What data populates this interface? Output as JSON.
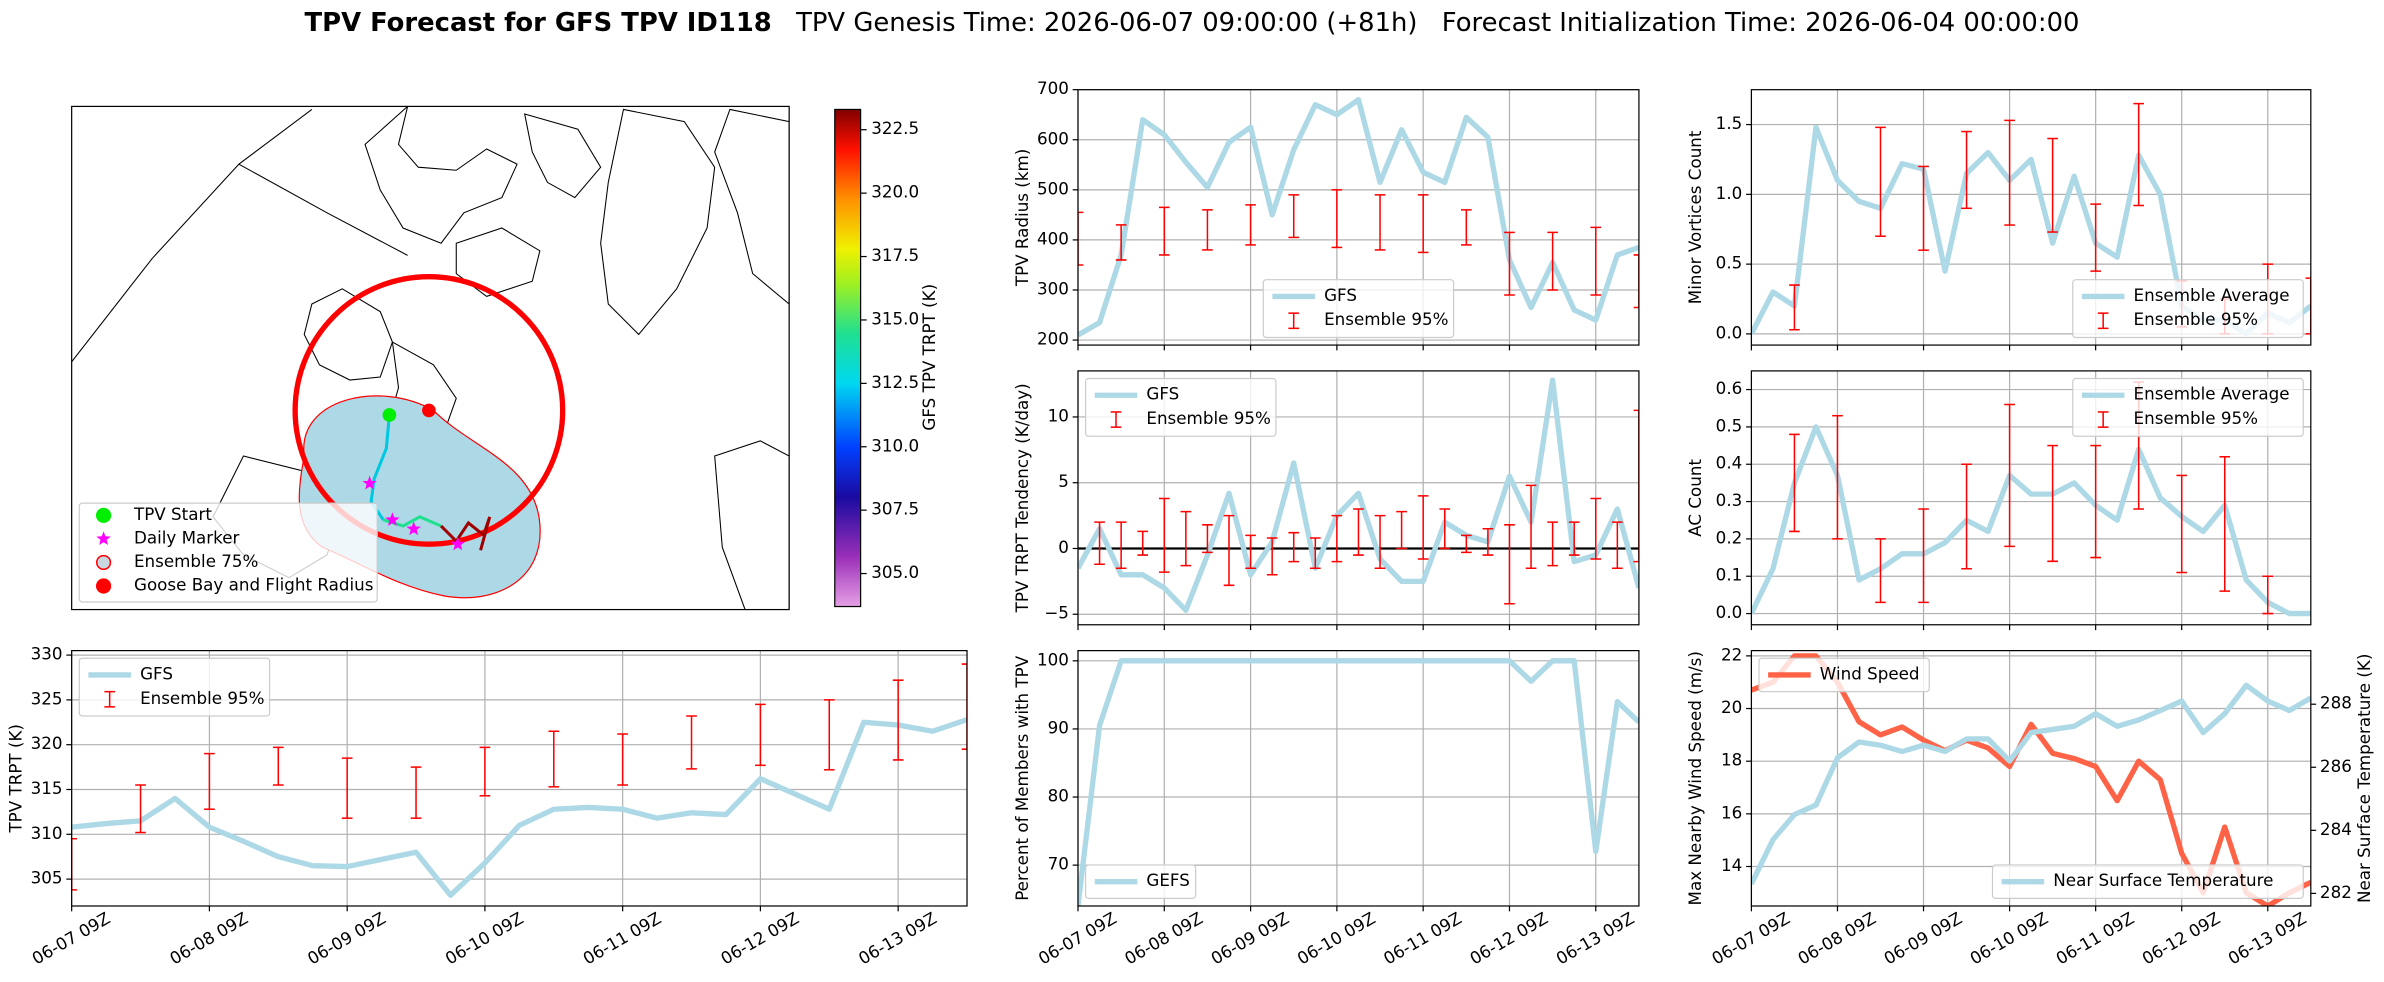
{
  "chart_data": [
    {
      "type": "map",
      "legend": [
        {
          "name": "TPV Start",
          "marker": "circle",
          "color": "#00ee00",
          "edgecolor": "#00ee00"
        },
        {
          "name": "Daily Marker",
          "marker": "star",
          "color": "#ff00ff",
          "edgecolor": "#ff00ff"
        },
        {
          "name": "Ensemble 75%",
          "marker": "circle",
          "color": "#c9d8e0",
          "edgecolor": "#ff0000"
        },
        {
          "name": "Goose Bay and Flight Radius",
          "marker": "circle",
          "color": "#ff0000",
          "edgecolor": "#ff0000"
        }
      ],
      "colorbar": {
        "label": "GFS TPV TRPT (K)",
        "ylim": [
          303.7,
          323.3
        ],
        "yticks": [
          {
            "value": 305,
            "label": "305.0"
          },
          307.5,
          {
            "value": 310,
            "label": "310.0"
          },
          312.5,
          {
            "value": 315,
            "label": "315.0"
          },
          317.5,
          {
            "value": 320,
            "label": "320.0"
          },
          322.5
        ]
      }
    },
    {
      "type": "line",
      "ylabel": "TPV Radius (km)",
      "grid": true,
      "legend": "lower center",
      "x": [
        "06-07 09Z",
        "06-07 15Z",
        "06-07 21Z",
        "06-08 03Z",
        "06-08 09Z",
        "06-08 15Z",
        "06-08 21Z",
        "06-09 03Z",
        "06-09 09Z",
        "06-09 15Z",
        "06-09 21Z",
        "06-10 03Z",
        "06-10 09Z",
        "06-10 15Z",
        "06-10 21Z",
        "06-11 03Z",
        "06-11 09Z",
        "06-11 15Z",
        "06-11 21Z",
        "06-12 03Z",
        "06-12 09Z",
        "06-12 15Z",
        "06-12 21Z",
        "06-13 03Z",
        "06-13 09Z",
        "06-13 15Z",
        "06-13 21Z"
      ],
      "ylim": [
        190,
        700
      ],
      "yticks": [
        200,
        300,
        400,
        500,
        600,
        700
      ],
      "series": [
        {
          "name": "GFS",
          "color": "#add8e6",
          "values": [
            210,
            235,
            370,
            640,
            610,
            555,
            505,
            595,
            625,
            450,
            580,
            670,
            650,
            680,
            515,
            620,
            535,
            515,
            645,
            605,
            360,
            265,
            355,
            260,
            240,
            370,
            385
          ]
        },
        {
          "name": "Ensemble 95%",
          "color": "#ff0000",
          "lower": [
            350,
            null,
            360,
            null,
            370,
            null,
            380,
            null,
            390,
            null,
            405,
            null,
            385,
            null,
            380,
            null,
            375,
            null,
            390,
            null,
            290,
            null,
            300,
            null,
            290,
            null,
            265
          ],
          "upper": [
            455,
            null,
            430,
            null,
            465,
            null,
            460,
            null,
            470,
            null,
            490,
            null,
            500,
            null,
            490,
            null,
            490,
            null,
            460,
            null,
            415,
            null,
            415,
            null,
            425,
            null,
            370
          ]
        }
      ]
    },
    {
      "type": "line",
      "ylabel": "Minor Vortices Count",
      "grid": true,
      "legend": "lower right",
      "x": [
        "06-07 09Z",
        "06-07 15Z",
        "06-07 21Z",
        "06-08 03Z",
        "06-08 09Z",
        "06-08 15Z",
        "06-08 21Z",
        "06-09 03Z",
        "06-09 09Z",
        "06-09 15Z",
        "06-09 21Z",
        "06-10 03Z",
        "06-10 09Z",
        "06-10 15Z",
        "06-10 21Z",
        "06-11 03Z",
        "06-11 09Z",
        "06-11 15Z",
        "06-11 21Z",
        "06-12 03Z",
        "06-12 09Z",
        "06-12 15Z",
        "06-12 21Z",
        "06-13 03Z",
        "06-13 09Z",
        "06-13 15Z",
        "06-13 21Z"
      ],
      "ylim": [
        -0.08,
        1.75
      ],
      "yticks": [
        {
          "value": 0,
          "label": "0.0"
        },
        0.5,
        {
          "value": 1,
          "label": "1.0"
        },
        1.5
      ],
      "series": [
        {
          "name": "Ensemble Average",
          "color": "#add8e6",
          "values": [
            0,
            0.3,
            0.2,
            1.48,
            1.1,
            0.95,
            0.9,
            1.22,
            1.18,
            0.45,
            1.15,
            1.3,
            1.1,
            1.25,
            0.65,
            1.13,
            0.65,
            0.55,
            1.28,
            1,
            0.2,
            0.1,
            0.1,
            0,
            0.15,
            0.08,
            0.2
          ]
        },
        {
          "name": "Ensemble 95%",
          "color": "#ff0000",
          "lower": [
            null,
            null,
            0.03,
            null,
            null,
            null,
            0.7,
            null,
            0.6,
            null,
            0.9,
            null,
            0.78,
            null,
            0.73,
            null,
            0.45,
            null,
            0.92,
            null,
            0.05,
            null,
            0,
            null,
            0,
            null,
            0
          ],
          "upper": [
            null,
            null,
            0.35,
            null,
            null,
            null,
            1.48,
            null,
            1.2,
            null,
            1.45,
            null,
            1.53,
            null,
            1.4,
            null,
            0.93,
            null,
            1.65,
            null,
            0.38,
            null,
            0.25,
            null,
            0.5,
            null,
            0.4
          ]
        }
      ]
    },
    {
      "type": "line",
      "ylabel": "TPV TRPT Tendency (K/day)",
      "grid": true,
      "legend": "upper left",
      "hline": 0,
      "x": [
        "06-07 09Z",
        "06-07 15Z",
        "06-07 21Z",
        "06-08 03Z",
        "06-08 09Z",
        "06-08 15Z",
        "06-08 21Z",
        "06-09 03Z",
        "06-09 09Z",
        "06-09 15Z",
        "06-09 21Z",
        "06-10 03Z",
        "06-10 09Z",
        "06-10 15Z",
        "06-10 21Z",
        "06-11 03Z",
        "06-11 09Z",
        "06-11 15Z",
        "06-11 21Z",
        "06-12 03Z",
        "06-12 09Z",
        "06-12 15Z",
        "06-12 21Z",
        "06-13 03Z",
        "06-13 09Z",
        "06-13 15Z",
        "06-13 21Z"
      ],
      "ylim": [
        -5.8,
        13.5
      ],
      "yticks": [
        {
          "value": -5,
          "label": "−5"
        },
        0,
        5,
        10
      ],
      "series": [
        {
          "name": "GFS",
          "color": "#add8e6",
          "values": [
            -1.5,
            1.5,
            -2,
            -2,
            -3,
            -4.7,
            -0.5,
            4.2,
            -2,
            0.5,
            6.5,
            -1.5,
            2.5,
            4.2,
            -0.8,
            -2.5,
            -2.5,
            2,
            1,
            0.5,
            5.5,
            2,
            12.8,
            -1,
            -0.5,
            3,
            -3
          ]
        },
        {
          "name": "Ensemble 95%",
          "color": "#ff0000",
          "lower": [
            null,
            -1.2,
            -1.5,
            -0.5,
            -1.8,
            -1.3,
            -0.3,
            -2.8,
            -1.5,
            -2,
            -1,
            -1.5,
            -1,
            -0.5,
            -1.5,
            0,
            -0.8,
            0,
            -0.3,
            -0.5,
            -4.2,
            -1.5,
            -1.3,
            -0.5,
            -0.8,
            -1.5,
            -1
          ],
          "upper": [
            null,
            2,
            2,
            1.3,
            3.8,
            2.8,
            1.8,
            2.5,
            1,
            0.8,
            1.2,
            0.8,
            2.5,
            3,
            2.5,
            2.8,
            4,
            3,
            1,
            1.5,
            1.8,
            4.8,
            2,
            2,
            3.8,
            2,
            10.5
          ]
        }
      ]
    },
    {
      "type": "line",
      "ylabel": "AC Count",
      "grid": true,
      "legend": "upper right",
      "x": [
        "06-07 09Z",
        "06-07 15Z",
        "06-07 21Z",
        "06-08 03Z",
        "06-08 09Z",
        "06-08 15Z",
        "06-08 21Z",
        "06-09 03Z",
        "06-09 09Z",
        "06-09 15Z",
        "06-09 21Z",
        "06-10 03Z",
        "06-10 09Z",
        "06-10 15Z",
        "06-10 21Z",
        "06-11 03Z",
        "06-11 09Z",
        "06-11 15Z",
        "06-11 21Z",
        "06-12 03Z",
        "06-12 09Z",
        "06-12 15Z",
        "06-12 21Z",
        "06-13 03Z",
        "06-13 09Z",
        "06-13 15Z",
        "06-13 21Z"
      ],
      "ylim": [
        -0.03,
        0.65
      ],
      "yticks": [
        {
          "value": 0,
          "label": "0.0"
        },
        0.1,
        0.2,
        0.3,
        0.4,
        0.5,
        0.6
      ],
      "series": [
        {
          "name": "Ensemble Average",
          "color": "#add8e6",
          "values": [
            0,
            0.12,
            0.35,
            0.5,
            0.37,
            0.09,
            0.12,
            0.16,
            0.16,
            0.19,
            0.25,
            0.22,
            0.37,
            0.32,
            0.32,
            0.35,
            0.29,
            0.25,
            0.44,
            0.31,
            0.26,
            0.22,
            0.29,
            0.09,
            0.03,
            0,
            0
          ]
        },
        {
          "name": "Ensemble 95%",
          "color": "#ff0000",
          "lower": [
            null,
            null,
            0.22,
            null,
            0.2,
            null,
            0.03,
            null,
            0.03,
            null,
            0.12,
            null,
            0.18,
            null,
            0.14,
            null,
            0.15,
            null,
            0.28,
            null,
            0.11,
            null,
            0.06,
            null,
            0,
            null,
            null
          ],
          "upper": [
            null,
            null,
            0.48,
            null,
            0.53,
            null,
            0.2,
            null,
            0.28,
            null,
            0.4,
            null,
            0.56,
            null,
            0.45,
            null,
            0.45,
            null,
            0.62,
            null,
            0.37,
            null,
            0.42,
            null,
            0.1,
            null,
            null
          ]
        }
      ]
    },
    {
      "type": "line",
      "ylabel": "TPV TRPT (K)",
      "grid": true,
      "legend": "upper left",
      "x": [
        "06-07 09Z",
        "06-07 15Z",
        "06-07 21Z",
        "06-08 03Z",
        "06-08 09Z",
        "06-08 15Z",
        "06-08 21Z",
        "06-09 03Z",
        "06-09 09Z",
        "06-09 15Z",
        "06-09 21Z",
        "06-10 03Z",
        "06-10 09Z",
        "06-10 15Z",
        "06-10 21Z",
        "06-11 03Z",
        "06-11 09Z",
        "06-11 15Z",
        "06-11 21Z",
        "06-12 03Z",
        "06-12 09Z",
        "06-12 15Z",
        "06-12 21Z",
        "06-13 03Z",
        "06-13 09Z",
        "06-13 15Z",
        "06-13 21Z"
      ],
      "xticks": [
        "06-07 09Z",
        "06-08 09Z",
        "06-09 09Z",
        "06-10 09Z",
        "06-11 09Z",
        "06-12 09Z",
        "06-13 09Z"
      ],
      "ylim": [
        302,
        330.5
      ],
      "yticks": [
        305,
        310,
        315,
        320,
        325,
        330
      ],
      "series": [
        {
          "name": "GFS",
          "color": "#add8e6",
          "values": [
            310.8,
            311.2,
            311.5,
            314,
            310.8,
            309.2,
            307.5,
            306.5,
            306.4,
            307.2,
            308,
            303.2,
            306.8,
            311,
            312.8,
            313,
            312.8,
            311.8,
            312.4,
            312.2,
            316.2,
            314.5,
            312.8,
            322.5,
            322.2,
            321.5,
            322.8
          ]
        },
        {
          "name": "Ensemble 95%",
          "color": "#ff0000",
          "lower": [
            303.8,
            null,
            310.2,
            null,
            312.8,
            null,
            315.5,
            null,
            311.8,
            null,
            311.8,
            null,
            314.3,
            null,
            315.3,
            null,
            315.5,
            null,
            317.3,
            null,
            317.7,
            null,
            317.2,
            null,
            318.3,
            null,
            319.5
          ],
          "upper": [
            309.5,
            null,
            315.5,
            null,
            319,
            null,
            319.7,
            null,
            318.5,
            null,
            317.5,
            null,
            319.7,
            null,
            321.5,
            null,
            321.2,
            null,
            323.2,
            null,
            324.5,
            null,
            325,
            null,
            327.2,
            null,
            329
          ]
        }
      ]
    },
    {
      "type": "line",
      "ylabel": "Percent of Members with TPV",
      "grid": true,
      "legend": "lower left",
      "x": [
        "06-07 09Z",
        "06-07 15Z",
        "06-07 21Z",
        "06-08 03Z",
        "06-08 09Z",
        "06-08 15Z",
        "06-08 21Z",
        "06-09 03Z",
        "06-09 09Z",
        "06-09 15Z",
        "06-09 21Z",
        "06-10 03Z",
        "06-10 09Z",
        "06-10 15Z",
        "06-10 21Z",
        "06-11 03Z",
        "06-11 09Z",
        "06-11 15Z",
        "06-11 21Z",
        "06-12 03Z",
        "06-12 09Z",
        "06-12 15Z",
        "06-12 21Z",
        "06-13 03Z",
        "06-13 09Z",
        "06-13 15Z",
        "06-13 21Z"
      ],
      "xticks": [
        "06-07 09Z",
        "06-08 09Z",
        "06-09 09Z",
        "06-10 09Z",
        "06-11 09Z",
        "06-12 09Z",
        "06-13 09Z"
      ],
      "ylim": [
        64,
        101.5
      ],
      "yticks": [
        70,
        80,
        90,
        100
      ],
      "series": [
        {
          "name": "GEFS",
          "color": "#add8e6",
          "values": [
            64,
            90.5,
            100,
            100,
            100,
            100,
            100,
            100,
            100,
            100,
            100,
            100,
            100,
            100,
            100,
            100,
            100,
            100,
            100,
            100,
            100,
            97,
            100,
            100,
            72,
            94,
            91
          ]
        }
      ]
    },
    {
      "type": "line",
      "ylabel": "Max Nearby Wind Speed (m/s)",
      "ylabel_color": "#ff6347",
      "y2label": "Near Surface Temperature (K)",
      "y2label_color": "#4169e1",
      "grid": true,
      "legend": "upper left",
      "legend2": "lower right",
      "x": [
        "06-07 09Z",
        "06-07 15Z",
        "06-07 21Z",
        "06-08 03Z",
        "06-08 09Z",
        "06-08 15Z",
        "06-08 21Z",
        "06-09 03Z",
        "06-09 09Z",
        "06-09 15Z",
        "06-09 21Z",
        "06-10 03Z",
        "06-10 09Z",
        "06-10 15Z",
        "06-10 21Z",
        "06-11 03Z",
        "06-11 09Z",
        "06-11 15Z",
        "06-11 21Z",
        "06-12 03Z",
        "06-12 09Z",
        "06-12 15Z",
        "06-12 21Z",
        "06-13 03Z",
        "06-13 09Z",
        "06-13 15Z",
        "06-13 21Z"
      ],
      "xticks": [
        "06-07 09Z",
        "06-08 09Z",
        "06-09 09Z",
        "06-10 09Z",
        "06-11 09Z",
        "06-12 09Z",
        "06-13 09Z"
      ],
      "ylim": [
        12.5,
        22.2
      ],
      "yticks": [
        14,
        16,
        18,
        20,
        22
      ],
      "y2lim": [
        281.6,
        289.7
      ],
      "y2ticks": [
        282,
        284,
        286,
        288
      ],
      "series": [
        {
          "name": "Wind Speed",
          "color": "#ff6347",
          "values": [
            20.7,
            21,
            22,
            22,
            21,
            19.5,
            19,
            19.3,
            18.8,
            18.4,
            18.8,
            18.5,
            17.8,
            19.4,
            18.3,
            18.1,
            17.8,
            16.5,
            18,
            17.3,
            14.5,
            13,
            15.5,
            13,
            12.5,
            13,
            13.4
          ]
        },
        {
          "name": "Near Surface Temperature",
          "color": "#add8e6",
          "axis": "y2",
          "values": [
            282.3,
            283.7,
            284.5,
            284.8,
            286.3,
            286.8,
            286.7,
            286.5,
            286.7,
            286.5,
            286.9,
            286.9,
            286.2,
            287.1,
            287.2,
            287.3,
            287.7,
            287.3,
            287.5,
            287.8,
            288.1,
            287.1,
            287.7,
            288.6,
            288.1,
            287.8,
            288.2
          ]
        }
      ]
    }
  ],
  "header": {
    "title": "TPV Forecast for GFS TPV ID118",
    "genesis": "TPV Genesis Time: 2026-06-07 09:00:00 (+81h)",
    "init": "Forecast Initialization Time: 2026-06-04 00:00:00"
  }
}
